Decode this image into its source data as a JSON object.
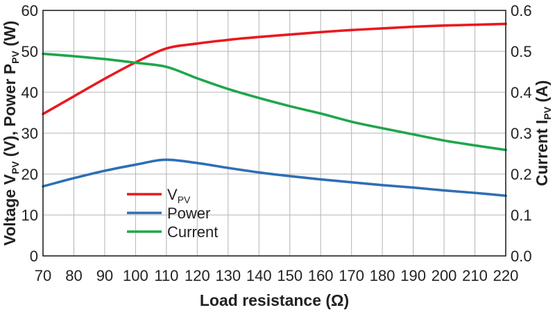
{
  "chart_data": {
    "type": "line",
    "x": [
      70,
      80,
      90,
      100,
      110,
      120,
      130,
      140,
      150,
      160,
      170,
      180,
      190,
      200,
      210,
      220
    ],
    "xlabel": "Load resistance (Ω)",
    "xlim": [
      70,
      220
    ],
    "xticks": [
      70,
      80,
      90,
      100,
      110,
      120,
      130,
      140,
      150,
      160,
      170,
      180,
      190,
      200,
      210,
      220
    ],
    "ylabel_left": {
      "pre": "Voltage V",
      "sub1": "PV",
      "mid": " (V), Power P",
      "sub2": "PV",
      "post": " (W)"
    },
    "ylim_left": [
      0,
      60
    ],
    "yticks_left": [
      "0",
      "10",
      "20",
      "30",
      "40",
      "50",
      "60"
    ],
    "ylabel_right": {
      "pre": "Current I",
      "sub": "PV",
      "post": " (A)"
    },
    "ylim_right": [
      0,
      0.6
    ],
    "yticks_right": [
      "0.0",
      "0.1",
      "0.2",
      "0.3",
      "0.4",
      "0.5",
      "0.6"
    ],
    "grid": true,
    "legend_position": "bottom-left",
    "series": [
      {
        "name": "V",
        "name_sub": "PV",
        "axis": "left",
        "color": "#e8191f",
        "values": [
          34.7,
          39.0,
          43.3,
          47.3,
          50.7,
          51.9,
          52.8,
          53.5,
          54.1,
          54.7,
          55.2,
          55.6,
          56.0,
          56.3,
          56.5,
          56.7
        ]
      },
      {
        "name": "Power",
        "axis": "left",
        "color": "#2e6fb4",
        "values": [
          17.0,
          19.0,
          20.8,
          22.3,
          23.5,
          22.7,
          21.5,
          20.4,
          19.5,
          18.7,
          18.0,
          17.3,
          16.7,
          16.0,
          15.4,
          14.7
        ]
      },
      {
        "name": "Current",
        "axis": "right",
        "color": "#1fa64a",
        "values": [
          0.494,
          0.488,
          0.481,
          0.472,
          0.462,
          0.434,
          0.408,
          0.386,
          0.366,
          0.348,
          0.328,
          0.312,
          0.297,
          0.282,
          0.27,
          0.259
        ]
      }
    ]
  }
}
